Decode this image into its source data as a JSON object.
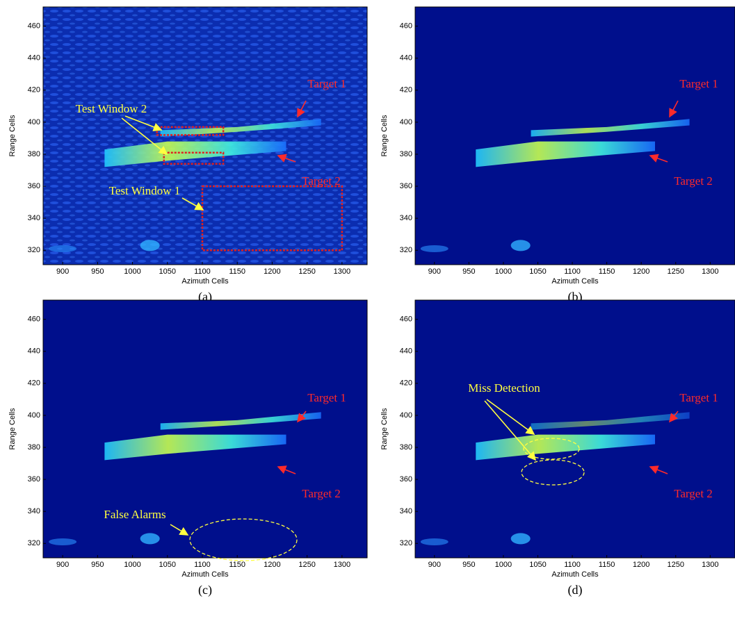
{
  "chart_data": [
    {
      "type": "heatmap",
      "caption": "(a)",
      "xlabel": "Azimuth Cells",
      "ylabel": "Range Cells",
      "xlim": [
        872,
        1336
      ],
      "ylim": [
        311,
        472
      ],
      "xticks": [
        900,
        950,
        1000,
        1050,
        1100,
        1150,
        1200,
        1250,
        1300
      ],
      "yticks": [
        320,
        340,
        360,
        380,
        400,
        420,
        440,
        460
      ],
      "background": "#0b2db0",
      "annotations": [
        {
          "text": "Target 1",
          "color": "#ff2a2a"
        },
        {
          "text": "Target 2",
          "color": "#ff2a2a"
        },
        {
          "text": "Test Window 2",
          "color": "#ffff40"
        },
        {
          "text": "Test Window 1",
          "color": "#ffff40"
        }
      ]
    },
    {
      "type": "heatmap",
      "caption": "(b)",
      "xlabel": "Azimuth Cells",
      "ylabel": "Range Cells",
      "xlim": [
        872,
        1336
      ],
      "ylim": [
        311,
        472
      ],
      "xticks": [
        900,
        950,
        1000,
        1050,
        1100,
        1150,
        1200,
        1250,
        1300
      ],
      "yticks": [
        320,
        340,
        360,
        380,
        400,
        420,
        440,
        460
      ],
      "background": "#000f8c",
      "annotations": [
        {
          "text": "Target 1",
          "color": "#ff2a2a"
        },
        {
          "text": "Target 2",
          "color": "#ff2a2a"
        }
      ]
    },
    {
      "type": "heatmap",
      "caption": "(c)",
      "xlabel": "Azimuth Cells",
      "ylabel": "Range Cells",
      "xlim": [
        872,
        1336
      ],
      "ylim": [
        311,
        472
      ],
      "xticks": [
        900,
        950,
        1000,
        1050,
        1100,
        1150,
        1200,
        1250,
        1300
      ],
      "yticks": [
        320,
        340,
        360,
        380,
        400,
        420,
        440,
        460
      ],
      "background": "#000f8c",
      "annotations": [
        {
          "text": "Target 1",
          "color": "#ff2a2a"
        },
        {
          "text": "Target 2",
          "color": "#ff2a2a"
        },
        {
          "text": "False Alarms",
          "color": "#ffff40"
        }
      ]
    },
    {
      "type": "heatmap",
      "caption": "(d)",
      "xlabel": "Azimuth Cells",
      "ylabel": "Range Cells",
      "xlim": [
        872,
        1336
      ],
      "ylim": [
        311,
        472
      ],
      "xticks": [
        900,
        950,
        1000,
        1050,
        1100,
        1150,
        1200,
        1250,
        1300
      ],
      "yticks": [
        320,
        340,
        360,
        380,
        400,
        420,
        440,
        460
      ],
      "background": "#000f8c",
      "annotations": [
        {
          "text": "Target 1",
          "color": "#ff2a2a"
        },
        {
          "text": "Target 2",
          "color": "#ff2a2a"
        },
        {
          "text": "Miss Detection",
          "color": "#ffff40"
        }
      ]
    }
  ]
}
